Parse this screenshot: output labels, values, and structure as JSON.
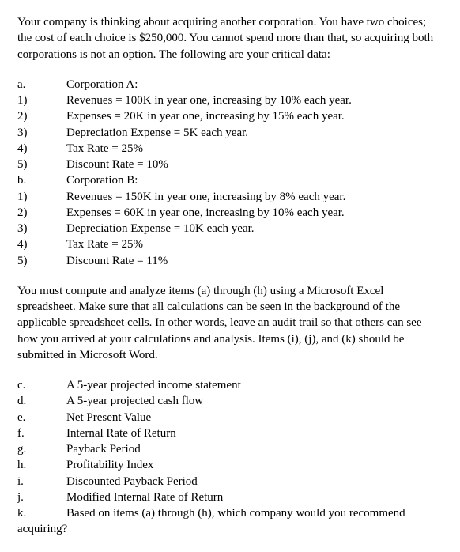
{
  "intro": "Your company is thinking about acquiring another corporation. You have two choices; the cost of each choice is $250,000. You cannot spend more than that, so acquiring both corporations is not an option. The following are your critical data:",
  "list1": {
    "items": [
      {
        "marker": "a.",
        "text": "Corporation A:"
      },
      {
        "marker": "1)",
        "text": "Revenues = 100K in year one, increasing by 10% each year."
      },
      {
        "marker": "2)",
        "text": "Expenses = 20K in year one, increasing by 15% each year."
      },
      {
        "marker": "3)",
        "text": "Depreciation Expense = 5K each year."
      },
      {
        "marker": "4)",
        "text": "Tax Rate = 25%"
      },
      {
        "marker": "5)",
        "text": "Discount Rate = 10%"
      },
      {
        "marker": "b.",
        "text": "Corporation B:"
      },
      {
        "marker": "1)",
        "text": "Revenues = 150K in year one, increasing by 8% each year."
      },
      {
        "marker": "2)",
        "text": "Expenses = 60K in year one, increasing by 10% each year."
      },
      {
        "marker": "3)",
        "text": "Depreciation Expense = 10K each year."
      },
      {
        "marker": "4)",
        "text": "Tax Rate = 25%"
      },
      {
        "marker": "5)",
        "text": "Discount Rate = 11%"
      }
    ]
  },
  "mid": "You must compute and analyze items (a) through (h) using a Microsoft Excel spreadsheet. Make sure that all calculations can be seen in the background of the applicable spreadsheet cells. In other words, leave an audit trail so that others can see how you arrived at your calculations and analysis. Items (i), (j), and (k) should be submitted in Microsoft Word.",
  "list2": {
    "items": [
      {
        "marker": "c.",
        "text": "A 5-year projected income statement"
      },
      {
        "marker": "d.",
        "text": "A 5-year projected cash flow"
      },
      {
        "marker": "e.",
        "text": "Net Present Value"
      },
      {
        "marker": "f.",
        "text": "Internal Rate of Return"
      },
      {
        "marker": "g.",
        "text": "Payback Period"
      },
      {
        "marker": "h.",
        "text": "Profitability Index"
      },
      {
        "marker": "i.",
        "text": "Discounted Payback Period"
      },
      {
        "marker": "j.",
        "text": "Modified Internal Rate of Return"
      }
    ]
  },
  "final": {
    "marker": "k.",
    "text": "Based on items (a) through (h), which company would you recommend",
    "cont": "acquiring?"
  }
}
